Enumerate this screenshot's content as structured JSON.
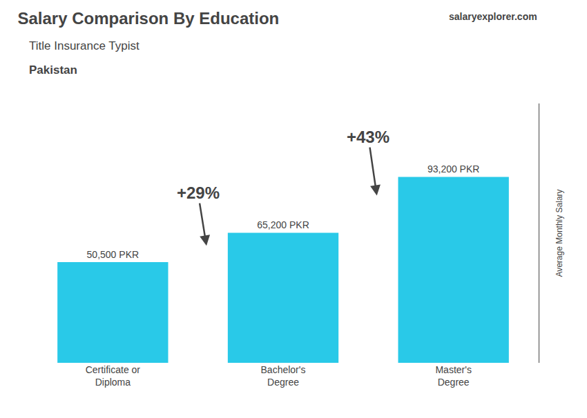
{
  "chart_data": {
    "type": "bar",
    "title": "Salary Comparison By Education",
    "subtitle": "Title Insurance Typist",
    "country": "Pakistan",
    "source": "salaryexplorer.com",
    "ylabel": "Average Monthly Salary",
    "categories": [
      "Certificate or\nDiploma",
      "Bachelor's\nDegree",
      "Master's\nDegree"
    ],
    "values": [
      50500,
      65200,
      93200
    ],
    "value_labels": [
      "50,500 PKR",
      "65,200 PKR",
      "93,200 PKR"
    ],
    "data_labels": true,
    "annotations": [
      "+29%",
      "+43%"
    ],
    "color": "#29c9e8",
    "ylim": [
      0,
      130000
    ],
    "tick_labels": "x",
    "grid": false
  }
}
